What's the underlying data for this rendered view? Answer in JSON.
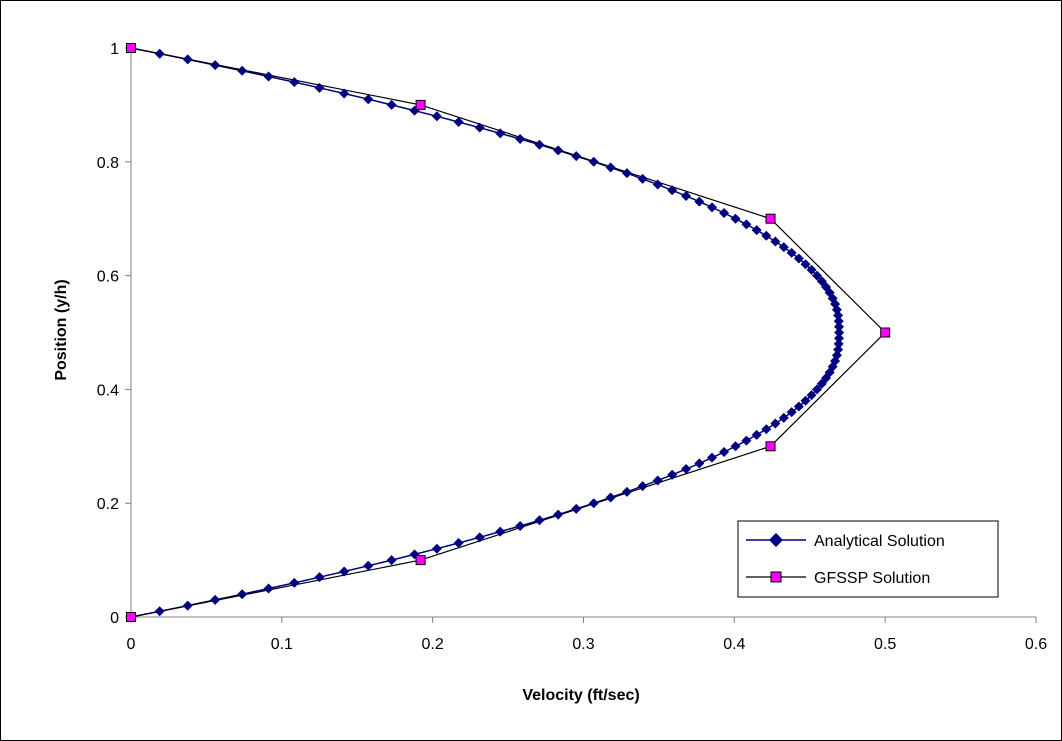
{
  "chart_data": {
    "type": "line",
    "title": "",
    "xlabel": "Velocity  (ft/sec)",
    "ylabel": "Position  (y/h)",
    "xlim": [
      0,
      0.6
    ],
    "ylim": [
      0,
      1
    ],
    "x_ticks": [
      "0",
      "0.1",
      "0.2",
      "0.3",
      "0.4",
      "0.5",
      "0.6"
    ],
    "y_ticks": [
      "0",
      "0.2",
      "0.4",
      "0.6",
      "0.8",
      "1"
    ],
    "grid": false,
    "legend_position": "bottom-right",
    "series": [
      {
        "name": "Analytical Solution",
        "color": "#000080",
        "marker": "diamond",
        "points": [
          [
            0.0,
            0.0
          ],
          [
            0.019,
            0.01
          ],
          [
            0.0376,
            0.02
          ],
          [
            0.0558,
            0.03
          ],
          [
            0.0737,
            0.04
          ],
          [
            0.0912,
            0.05
          ],
          [
            0.1083,
            0.06
          ],
          [
            0.125,
            0.07
          ],
          [
            0.1413,
            0.08
          ],
          [
            0.1573,
            0.09
          ],
          [
            0.1728,
            0.1
          ],
          [
            0.188,
            0.11
          ],
          [
            0.2028,
            0.12
          ],
          [
            0.2172,
            0.13
          ],
          [
            0.2312,
            0.14
          ],
          [
            0.2448,
            0.15
          ],
          [
            0.258,
            0.16
          ],
          [
            0.2708,
            0.17
          ],
          [
            0.2832,
            0.18
          ],
          [
            0.2952,
            0.19
          ],
          [
            0.3068,
            0.2
          ],
          [
            0.318,
            0.21
          ],
          [
            0.3288,
            0.22
          ],
          [
            0.3392,
            0.23
          ],
          [
            0.3492,
            0.24
          ],
          [
            0.3588,
            0.25
          ],
          [
            0.368,
            0.26
          ],
          [
            0.3768,
            0.27
          ],
          [
            0.3852,
            0.28
          ],
          [
            0.3932,
            0.29
          ],
          [
            0.4008,
            0.3
          ],
          [
            0.408,
            0.31
          ],
          [
            0.4148,
            0.32
          ],
          [
            0.4212,
            0.33
          ],
          [
            0.4272,
            0.34
          ],
          [
            0.4328,
            0.35
          ],
          [
            0.438,
            0.36
          ],
          [
            0.4428,
            0.37
          ],
          [
            0.4472,
            0.38
          ],
          [
            0.4512,
            0.39
          ],
          [
            0.4548,
            0.4
          ],
          [
            0.458,
            0.41
          ],
          [
            0.4608,
            0.42
          ],
          [
            0.4632,
            0.43
          ],
          [
            0.4652,
            0.44
          ],
          [
            0.4668,
            0.45
          ],
          [
            0.468,
            0.46
          ],
          [
            0.4688,
            0.47
          ],
          [
            0.4692,
            0.48
          ],
          [
            0.4694,
            0.49
          ],
          [
            0.4695,
            0.5
          ],
          [
            0.4694,
            0.51
          ],
          [
            0.4692,
            0.52
          ],
          [
            0.4688,
            0.53
          ],
          [
            0.468,
            0.54
          ],
          [
            0.4668,
            0.55
          ],
          [
            0.4652,
            0.56
          ],
          [
            0.4632,
            0.57
          ],
          [
            0.4608,
            0.58
          ],
          [
            0.458,
            0.59
          ],
          [
            0.4548,
            0.6
          ],
          [
            0.4512,
            0.61
          ],
          [
            0.4472,
            0.62
          ],
          [
            0.4428,
            0.63
          ],
          [
            0.438,
            0.64
          ],
          [
            0.4328,
            0.65
          ],
          [
            0.4272,
            0.66
          ],
          [
            0.4212,
            0.67
          ],
          [
            0.4148,
            0.68
          ],
          [
            0.408,
            0.69
          ],
          [
            0.4008,
            0.7
          ],
          [
            0.3932,
            0.71
          ],
          [
            0.3852,
            0.72
          ],
          [
            0.3768,
            0.73
          ],
          [
            0.368,
            0.74
          ],
          [
            0.3588,
            0.75
          ],
          [
            0.3492,
            0.76
          ],
          [
            0.3392,
            0.77
          ],
          [
            0.3288,
            0.78
          ],
          [
            0.318,
            0.79
          ],
          [
            0.3068,
            0.8
          ],
          [
            0.2952,
            0.81
          ],
          [
            0.2832,
            0.82
          ],
          [
            0.2708,
            0.83
          ],
          [
            0.258,
            0.84
          ],
          [
            0.2448,
            0.85
          ],
          [
            0.2312,
            0.86
          ],
          [
            0.2172,
            0.87
          ],
          [
            0.2028,
            0.88
          ],
          [
            0.188,
            0.89
          ],
          [
            0.1728,
            0.9
          ],
          [
            0.1573,
            0.91
          ],
          [
            0.1413,
            0.92
          ],
          [
            0.125,
            0.93
          ],
          [
            0.1083,
            0.94
          ],
          [
            0.0912,
            0.95
          ],
          [
            0.0737,
            0.96
          ],
          [
            0.0558,
            0.97
          ],
          [
            0.0376,
            0.98
          ],
          [
            0.019,
            0.99
          ],
          [
            0.0,
            1.0
          ]
        ]
      },
      {
        "name": "GFSSP Solution",
        "color": "#000000",
        "marker_fill": "#FF00FF",
        "marker": "square",
        "points": [
          [
            0.0,
            0.0
          ],
          [
            0.192,
            0.1
          ],
          [
            0.424,
            0.3
          ],
          [
            0.5,
            0.5
          ],
          [
            0.424,
            0.7
          ],
          [
            0.192,
            0.9
          ],
          [
            0.0,
            1.0
          ]
        ]
      }
    ]
  }
}
